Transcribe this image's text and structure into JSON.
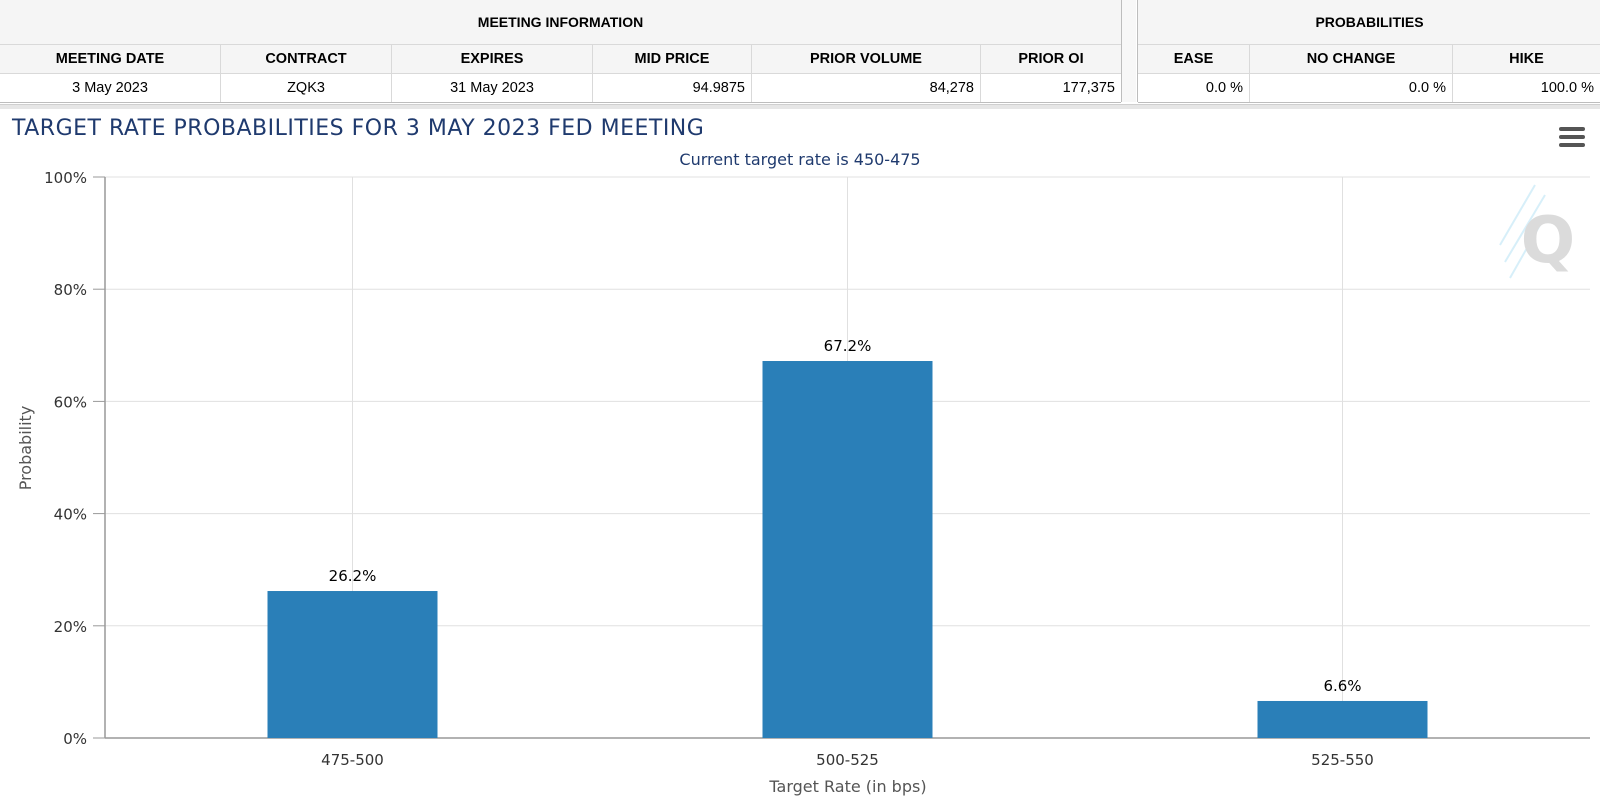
{
  "meeting_info": {
    "title": "MEETING INFORMATION",
    "headers": [
      "MEETING DATE",
      "CONTRACT",
      "EXPIRES",
      "MID PRICE",
      "PRIOR VOLUME",
      "PRIOR OI"
    ],
    "row": [
      "3 May 2023",
      "ZQK3",
      "31 May 2023",
      "94.9875",
      "84,278",
      "177,375"
    ]
  },
  "probabilities": {
    "title": "PROBABILITIES",
    "headers": [
      "EASE",
      "NO CHANGE",
      "HIKE"
    ],
    "row": [
      "0.0 %",
      "0.0 %",
      "100.0 %"
    ]
  },
  "chart_title": "TARGET RATE PROBABILITIES FOR 3 MAY 2023 FED MEETING",
  "colors": {
    "bar": "#2a7fb8",
    "title": "#1f3a6e",
    "grid": "#e0e0e0"
  },
  "icons": {
    "menu": "hamburger-menu-icon",
    "watermark": "q-logo"
  },
  "chart_data": {
    "type": "bar",
    "title": "TARGET RATE PROBABILITIES FOR 3 MAY 2023 FED MEETING",
    "subtitle": "Current target rate is 450-475",
    "xlabel": "Target Rate (in bps)",
    "ylabel": "Probability",
    "categories": [
      "475-500",
      "500-525",
      "525-550"
    ],
    "values": [
      26.2,
      67.2,
      6.6
    ],
    "data_labels": [
      "26.2%",
      "67.2%",
      "6.6%"
    ],
    "ylim": [
      0,
      100
    ],
    "yticks": [
      0,
      20,
      40,
      60,
      80,
      100
    ],
    "ytick_labels": [
      "0%",
      "20%",
      "40%",
      "60%",
      "80%",
      "100%"
    ],
    "grid": true,
    "legend": "none"
  }
}
